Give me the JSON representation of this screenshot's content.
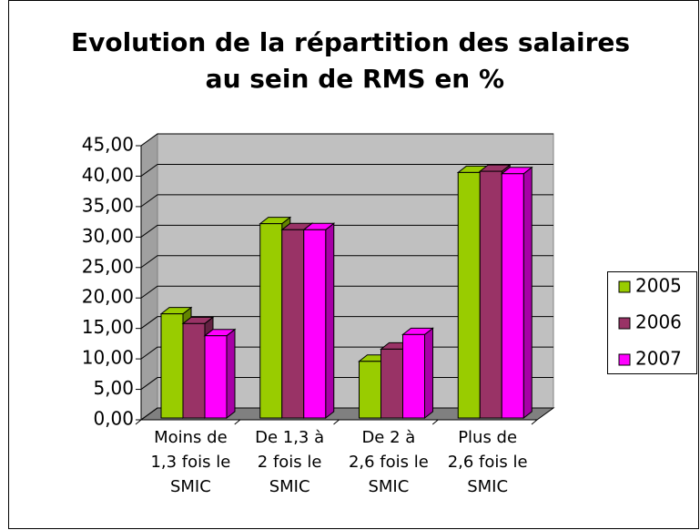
{
  "chart_data": {
    "type": "bar3d",
    "title": "Evolution de la répartition des salaires au sein de RMS en %",
    "categories": [
      "Moins de 1,3 fois le SMIC",
      "De 1,3 à 2 fois le SMIC",
      "De 2 à 2,6 fois le SMIC",
      "Plus de 2,6 fois le SMIC"
    ],
    "series": [
      {
        "name": "2005",
        "color": "#99cc00",
        "values": [
          17.4,
          32.2,
          9.6,
          40.6
        ]
      },
      {
        "name": "2006",
        "color": "#993366",
        "values": [
          15.8,
          31.2,
          11.6,
          40.8
        ]
      },
      {
        "name": "2007",
        "color": "#ff00ff",
        "values": [
          13.8,
          31.2,
          14.0,
          40.4
        ]
      }
    ],
    "ylim": [
      0,
      45
    ],
    "yticks": [
      {
        "value": 0,
        "label": "0,00"
      },
      {
        "value": 5,
        "label": "5,00"
      },
      {
        "value": 10,
        "label": "10,00"
      },
      {
        "value": 15,
        "label": "15,00"
      },
      {
        "value": 20,
        "label": "20,00"
      },
      {
        "value": 25,
        "label": "25,00"
      },
      {
        "value": 30,
        "label": "30,00"
      },
      {
        "value": 35,
        "label": "35,00"
      },
      {
        "value": 40,
        "label": "40,00"
      },
      {
        "value": 45,
        "label": "45,00"
      }
    ],
    "grid": true,
    "legend": "right"
  }
}
